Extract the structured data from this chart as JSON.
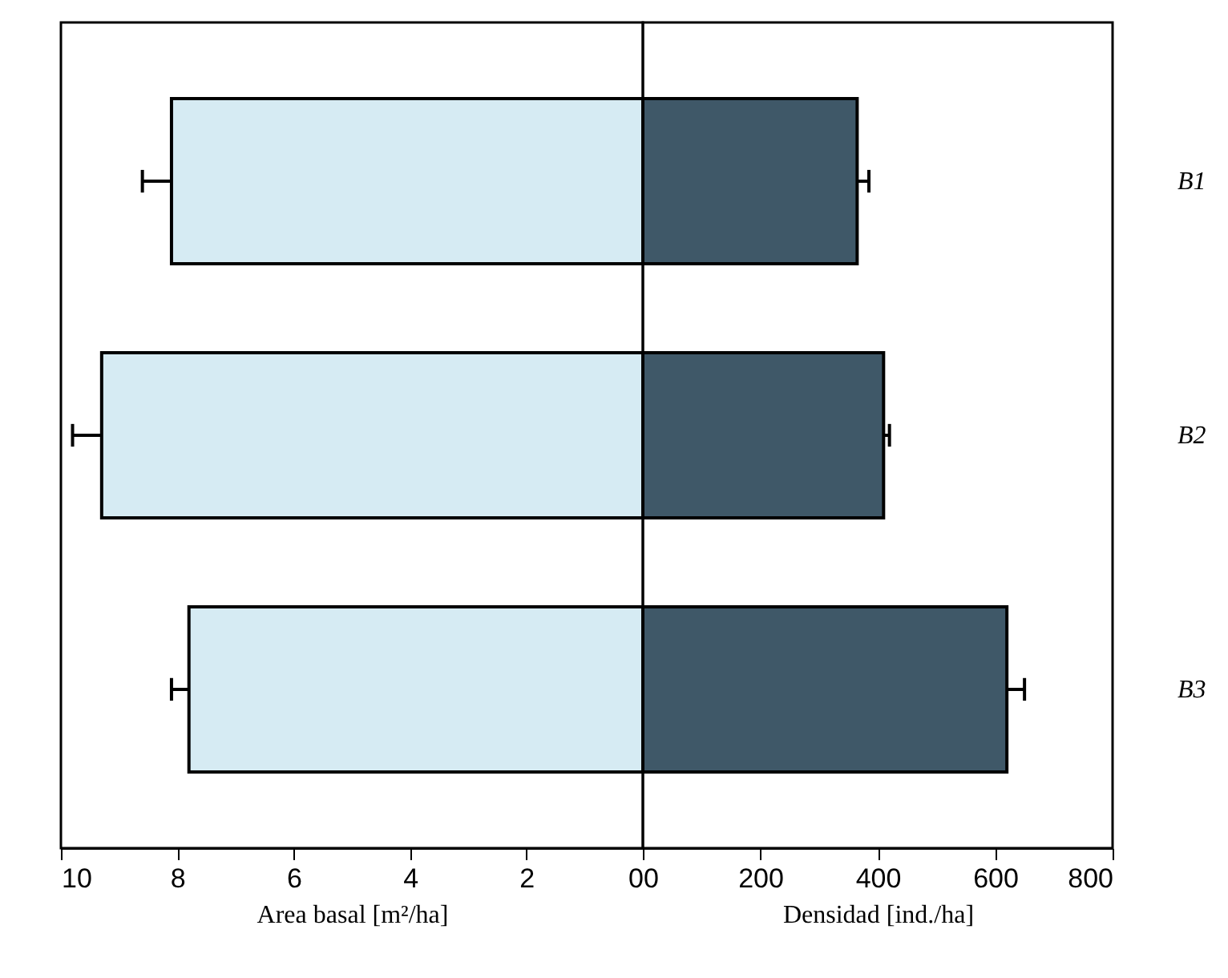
{
  "chart_data": [
    {
      "type": "bar",
      "orientation": "horizontal",
      "categories": [
        "B1",
        "B2",
        "B3"
      ],
      "values": [
        8.1,
        9.3,
        7.8
      ],
      "errors": [
        0.5,
        0.5,
        0.3
      ],
      "color": "#d6ebf3",
      "xlim": [
        10,
        0
      ],
      "xticks": [
        10,
        8,
        6,
        4,
        2,
        0
      ],
      "xlabel": "Area basal [m²/ha]",
      "tick_labels": "x"
    },
    {
      "type": "bar",
      "orientation": "horizontal",
      "categories": [
        "B1",
        "B2",
        "B3"
      ],
      "values": [
        365,
        410,
        620
      ],
      "errors": [
        20,
        10,
        30
      ],
      "color": "#3f5868",
      "xlim": [
        0,
        800
      ],
      "xticks": [
        0,
        200,
        400,
        600,
        800
      ],
      "xlabel": "Densidad [ind./ha]"
    }
  ]
}
